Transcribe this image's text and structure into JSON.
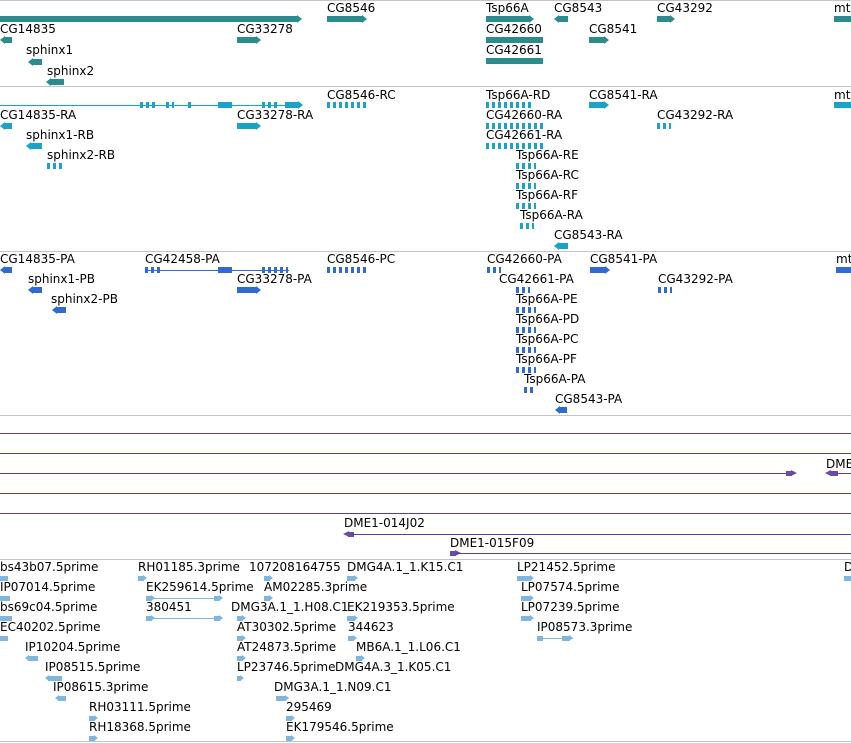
{
  "tracks": {
    "genes": {
      "labels": {
        "CG14835": "CG14835",
        "sphinx1": "sphinx1",
        "sphinx2": "sphinx2",
        "CG33278": "CG33278",
        "CG8546": "CG8546",
        "Tsp66A": "Tsp66A",
        "CG42660": "CG42660",
        "CG42661": "CG42661",
        "CG8543": "CG8543",
        "CG8541": "CG8541",
        "CG43292": "CG43292",
        "mtl": "mtl"
      }
    },
    "transcripts": {
      "labels": {
        "CG14835_RA": "CG14835-RA",
        "sphinx1_RB": "sphinx1-RB",
        "sphinx2_RB": "sphinx2-RB",
        "CG33278_RA": "CG33278-RA",
        "CG8546_RC": "CG8546-RC",
        "Tsp66A_RD": "Tsp66A-RD",
        "CG42660_RA": "CG42660-RA",
        "CG42661_RA": "CG42661-RA",
        "Tsp66A_RE": "Tsp66A-RE",
        "Tsp66A_RC": "Tsp66A-RC",
        "Tsp66A_RF": "Tsp66A-RF",
        "Tsp66A_RA": "Tsp66A-RA",
        "CG8543_RA": "CG8543-RA",
        "CG8541_RA": "CG8541-RA",
        "CG43292_RA": "CG43292-RA",
        "mtl": "mtl"
      }
    },
    "proteins": {
      "labels": {
        "CG14835_PA": "CG14835-PA",
        "sphinx1_PB": "sphinx1-PB",
        "sphinx2_PB": "sphinx2-PB",
        "CG42458_PA": "CG42458-PA",
        "CG33278_PA": "CG33278-PA",
        "CG8546_PC": "CG8546-PC",
        "CG42660_PA": "CG42660-PA",
        "CG42661_PA": "CG42661-PA",
        "Tsp66A_PE": "Tsp66A-PE",
        "Tsp66A_PD": "Tsp66A-PD",
        "Tsp66A_PC": "Tsp66A-PC",
        "Tsp66A_PF": "Tsp66A-PF",
        "Tsp66A_PA": "Tsp66A-PA",
        "CG8543_PA": "CG8543-PA",
        "CG8541_PA": "CG8541-PA",
        "CG43292_PA": "CG43292-PA",
        "mtl": "mtl"
      }
    },
    "clones": {
      "labels": {
        "DME_right": "DME",
        "DME1_014J02": "DME1-014J02",
        "DME1_015F09": "DME1-015F09"
      }
    },
    "ests": {
      "labels": {
        "bs43b07": "bs43b07.5prime",
        "IP07014": "IP07014.5prime",
        "bs69c04": "bs69c04.5prime",
        "EC40202": "EC40202.5prime",
        "IP10204": "IP10204.5prime",
        "IP08515": "IP08515.5prime",
        "IP08615": "IP08615.3prime",
        "RH03111": "RH03111.5prime",
        "RH18368": "RH18368.5prime",
        "RH01185": "RH01185.3prime",
        "EK259614": "EK259614.5prime",
        "n380451": "380451",
        "n107208": "107208",
        "n164755": "164755",
        "AM02285": "AM02285.3prime",
        "DMG3A_H08": "DMG3A.1_1.H08.C1",
        "AT30302": "AT30302.5prime",
        "AT24873": "AT24873.5prime",
        "LP23746": "LP23746.5prime",
        "DMG3A_N09": "DMG3A.1_1.N09.C1",
        "n295469": "295469",
        "EK179546": "EK179546.5prime",
        "DMG4A_K15": "DMG4A.1_1.K15.C1",
        "EK219353": "EK219353.5prime",
        "n344623": "344623",
        "MB6A_L06": "MB6A.1_1.L06.C1",
        "DMG4A_K05": "DMG4A.3_1.K05.C1",
        "LP21452": "LP21452.5prime",
        "LP07574": "LP07574.5prime",
        "LP07239": "LP07239.5prime",
        "IP08573": "IP08573.3prime",
        "D_right": "D"
      }
    }
  },
  "colors": {
    "gene": "#2a8c8c",
    "transcript": "#1aa3c8",
    "protein": "#2f6bd1",
    "clone": "#5b3b9c",
    "est": "#7fb6e0",
    "divider": "#c4c4c4"
  }
}
